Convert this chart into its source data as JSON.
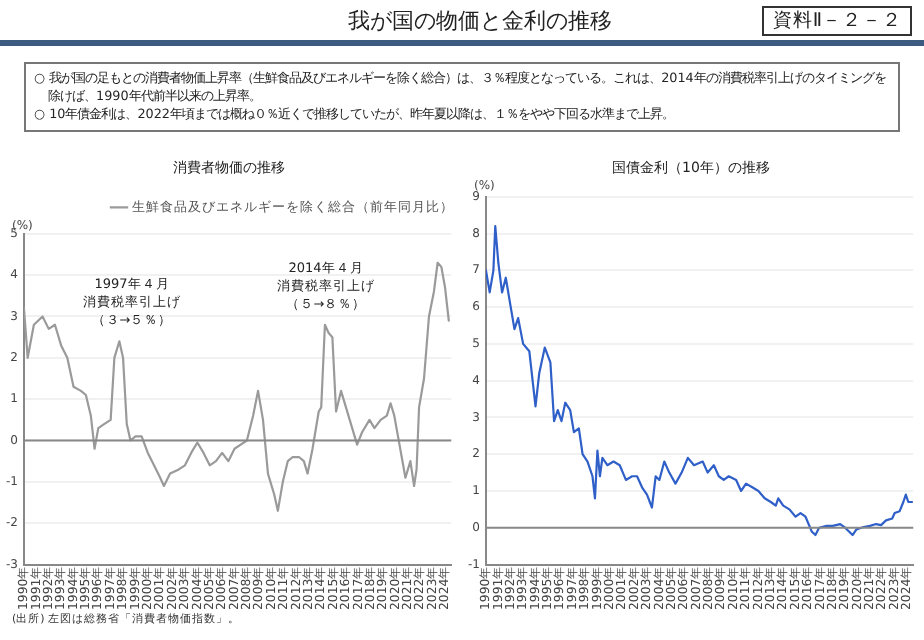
{
  "chart_data": [
    {
      "type": "other",
      "title": "我が国の物価と金利の推移",
      "annotations": [
        "資料Ⅱ－２－２",
        "○ 我が国の足もとの消費者物価上昇率（生鮮食品及びエネルギーを除く総合）は、３％程度となっている。これは、2014年の消費税率引上げのタイミングを除けば、1990年代前半以来の上昇率。",
        "○ 10年債金利は、2022年頃までは概ね０％近くで推移していたが、昨年夏以降は、１％をやや下回る水準まで上昇。"
      ]
    },
    {
      "type": "line",
      "title": "消費者物価の推移",
      "ylabel": "(%)",
      "xlim": [
        1990,
        2024.5
      ],
      "ylim": [
        -3,
        5
      ],
      "yticks": [
        -3,
        -2,
        -1,
        0,
        1,
        2,
        3,
        4,
        5
      ],
      "xticks": [
        {
          "value": 1990,
          "label": "1990年"
        },
        {
          "value": 1991,
          "label": "1991年"
        },
        {
          "value": 1992,
          "label": "1992年"
        },
        {
          "value": 1993,
          "label": "1993年"
        },
        {
          "value": 1994,
          "label": "1994年"
        },
        {
          "value": 1995,
          "label": "1995年"
        },
        {
          "value": 1996,
          "label": "1996年"
        },
        {
          "value": 1997,
          "label": "1997年"
        },
        {
          "value": 1998,
          "label": "1998年"
        },
        {
          "value": 1999,
          "label": "1999年"
        },
        {
          "value": 2000,
          "label": "2000年"
        },
        {
          "value": 2001,
          "label": "2001年"
        },
        {
          "value": 2002,
          "label": "2002年"
        },
        {
          "value": 2003,
          "label": "2003年"
        },
        {
          "value": 2004,
          "label": "2004年"
        },
        {
          "value": 2005,
          "label": "2005年"
        },
        {
          "value": 2006,
          "label": "2006年"
        },
        {
          "value": 2007,
          "label": "2007年"
        },
        {
          "value": 2008,
          "label": "2008年"
        },
        {
          "value": 2009,
          "label": "2009年"
        },
        {
          "value": 2010,
          "label": "2010年"
        },
        {
          "value": 2011,
          "label": "2011年"
        },
        {
          "value": 2012,
          "label": "2012年"
        },
        {
          "value": 2013,
          "label": "2013年"
        },
        {
          "value": 2014,
          "label": "2014年"
        },
        {
          "value": 2015,
          "label": "2015年"
        },
        {
          "value": 2016,
          "label": "2016年"
        },
        {
          "value": 2017,
          "label": "2017年"
        },
        {
          "value": 2018,
          "label": "2018年"
        },
        {
          "value": 2019,
          "label": "2019年"
        },
        {
          "value": 2020,
          "label": "2020年"
        },
        {
          "value": 2021,
          "label": "2021年"
        },
        {
          "value": 2022,
          "label": "2022年"
        },
        {
          "value": 2023,
          "label": "2023年"
        },
        {
          "value": 2024,
          "label": "2024年"
        }
      ],
      "grid": "y",
      "legend": "top right",
      "line_style": "solid",
      "marker": "none",
      "ref_lines": [
        {
          "axis": "y",
          "value": 0
        }
      ],
      "series": [
        {
          "name": "生鮮食品及びエネルギーを除く総合（前年同月比）",
          "color": "#9a9a9a",
          "x": [
            1990.0,
            1990.3,
            1990.8,
            1991.5,
            1992.0,
            1992.5,
            1993.0,
            1993.5,
            1994.0,
            1994.6,
            1995.0,
            1995.4,
            1995.7,
            1996.0,
            1996.5,
            1997.0,
            1997.3,
            1997.7,
            1998.0,
            1998.3,
            1998.6,
            1999.0,
            1999.5,
            2000.0,
            2000.5,
            2001.0,
            2001.3,
            2001.8,
            2002.5,
            2003.0,
            2003.5,
            2004.0,
            2004.5,
            2005.0,
            2005.5,
            2006.0,
            2006.5,
            2007.0,
            2007.5,
            2008.0,
            2008.5,
            2008.9,
            2009.3,
            2009.7,
            2010.2,
            2010.5,
            2010.9,
            2011.3,
            2011.7,
            2012.2,
            2012.6,
            2012.9,
            2013.3,
            2013.8,
            2014.0,
            2014.3,
            2014.6,
            2014.9,
            2015.2,
            2015.6,
            2016.0,
            2016.5,
            2016.9,
            2017.3,
            2017.9,
            2018.3,
            2018.8,
            2019.3,
            2019.6,
            2019.9,
            2020.2,
            2020.5,
            2020.8,
            2021.2,
            2021.5,
            2021.7,
            2021.9,
            2022.3,
            2022.7,
            2023.1,
            2023.4,
            2023.7,
            2024.0,
            2024.3
          ],
          "values": [
            3.2,
            2.0,
            2.8,
            3.0,
            2.7,
            2.8,
            2.3,
            2.0,
            1.3,
            1.2,
            1.1,
            0.6,
            -0.2,
            0.3,
            0.4,
            0.5,
            2.0,
            2.4,
            2.0,
            0.4,
            0.0,
            0.1,
            0.1,
            -0.3,
            -0.6,
            -0.9,
            -1.1,
            -0.8,
            -0.7,
            -0.6,
            -0.3,
            -0.05,
            -0.3,
            -0.6,
            -0.5,
            -0.3,
            -0.5,
            -0.2,
            -0.1,
            0.0,
            0.6,
            1.2,
            0.5,
            -0.8,
            -1.3,
            -1.7,
            -1.0,
            -0.5,
            -0.4,
            -0.4,
            -0.5,
            -0.8,
            -0.2,
            0.7,
            0.8,
            2.8,
            2.6,
            2.5,
            0.7,
            1.2,
            0.8,
            0.3,
            -0.1,
            0.2,
            0.5,
            0.3,
            0.5,
            0.6,
            0.9,
            0.6,
            0.1,
            -0.4,
            -0.9,
            -0.5,
            -1.1,
            -0.7,
            0.8,
            1.5,
            3.0,
            3.6,
            4.3,
            4.2,
            3.7,
            2.9
          ]
        }
      ],
      "annotations": [
        "1997年４月",
        "消費税率引上げ",
        "（３→５％）",
        "2014年４月",
        "消費税率引上げ",
        "（５→８％）",
        "(出所) 左図は総務省「消費者物価指数」。"
      ]
    },
    {
      "type": "line",
      "title": "国債金利（10年）の推移",
      "ylabel": "(%)",
      "xlim": [
        1990,
        2024.5
      ],
      "ylim": [
        -1,
        9
      ],
      "yticks": [
        -1,
        0,
        1,
        2,
        3,
        4,
        5,
        6,
        7,
        8,
        9
      ],
      "xticks": [
        {
          "value": 1990,
          "label": "1990年"
        },
        {
          "value": 1991,
          "label": "1991年"
        },
        {
          "value": 1992,
          "label": "1992年"
        },
        {
          "value": 1993,
          "label": "1993年"
        },
        {
          "value": 1994,
          "label": "1994年"
        },
        {
          "value": 1995,
          "label": "1995年"
        },
        {
          "value": 1996,
          "label": "1996年"
        },
        {
          "value": 1997,
          "label": "1997年"
        },
        {
          "value": 1998,
          "label": "1998年"
        },
        {
          "value": 1999,
          "label": "1999年"
        },
        {
          "value": 2000,
          "label": "2000年"
        },
        {
          "value": 2001,
          "label": "2001年"
        },
        {
          "value": 2002,
          "label": "2002年"
        },
        {
          "value": 2003,
          "label": "2003年"
        },
        {
          "value": 2004,
          "label": "2004年"
        },
        {
          "value": 2005,
          "label": "2005年"
        },
        {
          "value": 2006,
          "label": "2006年"
        },
        {
          "value": 2007,
          "label": "2007年"
        },
        {
          "value": 2008,
          "label": "2008年"
        },
        {
          "value": 2009,
          "label": "2009年"
        },
        {
          "value": 2010,
          "label": "2010年"
        },
        {
          "value": 2011,
          "label": "2011年"
        },
        {
          "value": 2012,
          "label": "2012年"
        },
        {
          "value": 2013,
          "label": "2013年"
        },
        {
          "value": 2014,
          "label": "2014年"
        },
        {
          "value": 2015,
          "label": "2015年"
        },
        {
          "value": 2016,
          "label": "2016年"
        },
        {
          "value": 2017,
          "label": "2017年"
        },
        {
          "value": 2018,
          "label": "2018年"
        },
        {
          "value": 2019,
          "label": "2019年"
        },
        {
          "value": 2020,
          "label": "2020年"
        },
        {
          "value": 2021,
          "label": "2021年"
        },
        {
          "value": 2022,
          "label": "2022年"
        },
        {
          "value": 2023,
          "label": "2023年"
        },
        {
          "value": 2024,
          "label": "2024年"
        }
      ],
      "grid": "y",
      "line_style": "solid",
      "marker": "none",
      "ref_lines": [
        {
          "axis": "y",
          "value": 0
        }
      ],
      "series": [
        {
          "color": "#2f5fc8",
          "x": [
            1990.0,
            1990.3,
            1990.6,
            1990.75,
            1991.0,
            1991.3,
            1991.6,
            1992.0,
            1992.3,
            1992.6,
            1993.0,
            1993.5,
            1993.8,
            1994.0,
            1994.3,
            1994.75,
            1995.2,
            1995.5,
            1995.8,
            1996.1,
            1996.4,
            1996.8,
            1997.1,
            1997.5,
            1997.8,
            1998.2,
            1998.6,
            1998.8,
            1999.0,
            1999.2,
            1999.4,
            1999.8,
            2000.3,
            2000.8,
            2001.3,
            2001.8,
            2002.2,
            2002.6,
            2003.0,
            2003.4,
            2003.7,
            2004.0,
            2004.4,
            2004.8,
            2005.3,
            2005.8,
            2006.3,
            2006.8,
            2007.5,
            2007.9,
            2008.4,
            2008.8,
            2009.2,
            2009.6,
            2010.2,
            2010.6,
            2011.0,
            2011.5,
            2012.0,
            2012.5,
            2013.0,
            2013.4,
            2013.6,
            2014.0,
            2014.5,
            2015.0,
            2015.4,
            2015.8,
            2016.3,
            2016.6,
            2016.9,
            2017.5,
            2018.0,
            2018.6,
            2019.0,
            2019.6,
            2019.9,
            2020.5,
            2021.0,
            2021.5,
            2021.9,
            2022.3,
            2022.8,
            2023.0,
            2023.4,
            2023.7,
            2023.9,
            2024.1,
            2024.4
          ],
          "values": [
            7.0,
            6.4,
            7.0,
            8.2,
            7.2,
            6.4,
            6.8,
            6.0,
            5.4,
            5.7,
            5.0,
            4.8,
            3.9,
            3.3,
            4.2,
            4.9,
            4.5,
            2.9,
            3.2,
            2.9,
            3.4,
            3.2,
            2.6,
            2.7,
            2.0,
            1.8,
            1.4,
            0.8,
            2.1,
            1.4,
            1.9,
            1.7,
            1.8,
            1.7,
            1.3,
            1.4,
            1.4,
            1.1,
            0.9,
            0.55,
            1.4,
            1.3,
            1.8,
            1.5,
            1.2,
            1.5,
            1.9,
            1.7,
            1.8,
            1.5,
            1.7,
            1.4,
            1.3,
            1.4,
            1.3,
            1.0,
            1.2,
            1.1,
            1.0,
            0.8,
            0.7,
            0.6,
            0.8,
            0.6,
            0.5,
            0.3,
            0.4,
            0.3,
            -0.1,
            -0.2,
            0.0,
            0.05,
            0.05,
            0.1,
            0.0,
            -0.2,
            -0.05,
            0.02,
            0.05,
            0.1,
            0.07,
            0.2,
            0.25,
            0.4,
            0.45,
            0.7,
            0.9,
            0.7,
            0.7
          ]
        }
      ]
    }
  ]
}
